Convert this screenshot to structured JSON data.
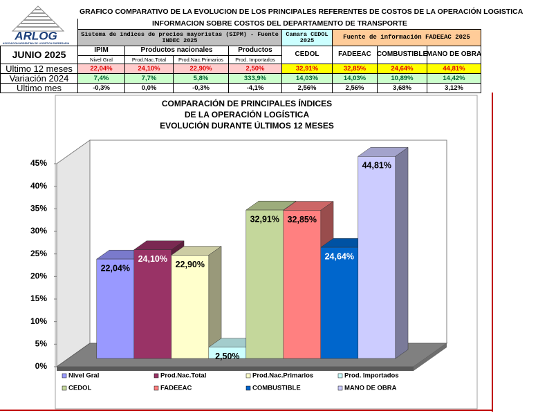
{
  "logo": {
    "name": "ARLOG",
    "tagline": "ASOCIACION ARGENTINA DE LOGISTICA EMPRESARIA"
  },
  "table": {
    "title": "GRAFICO COMPARATIVO DE LA EVOLUCION DE LOS PRINCIPALES REFERENTES DE COSTOS DE LA OPERACIÓN LOGISTICA",
    "subtitle": "INFORMACION SOBRE COSTOS  DEL DEPARTAMENTO DE TRANSPORTE",
    "period": "JUNIO 2025",
    "source_sipm": "Sistema de índices de precios mayoristas (SIPM) - Fuente INDEC 2025",
    "source_cedol": "Camara CEDOL 2025",
    "source_fadeeac": "Fuente de información FADEEAC 2025",
    "groups": [
      "IPIM",
      "Productos nacionales",
      "Productos"
    ],
    "columns": [
      "Nivel Gral",
      "Prod.Nac.Total",
      "Prod.Nac.Primarios",
      "Prod. Importados",
      "CEDOL",
      "FADEEAC",
      "COMBUSTIBLE",
      "MANO DE OBRA"
    ],
    "rows": [
      {
        "label": "Ultimo 12 meses",
        "cells": [
          "22,04%",
          "24,10%",
          "22,90%",
          "2,50%",
          "32,91%",
          "32,85%",
          "24,64%",
          "44,81%"
        ]
      },
      {
        "label": "Variación 2024",
        "cells": [
          "7,4%",
          "7,7%",
          "5,8%",
          "333,9%",
          "14,03%",
          "14,03%",
          "10,89%",
          "14,42%"
        ]
      },
      {
        "label": "Ultimo mes",
        "cells": [
          "-0,3%",
          "0,0%",
          "-0,3%",
          "-4,1%",
          "2,56%",
          "2,56%",
          "3,68%",
          "3,12%"
        ]
      }
    ]
  },
  "chart_data": {
    "type": "bar",
    "three_d": true,
    "title": [
      "COMPARACIÓN DE PRINCIPALES ÍNDICES",
      "DE LA OPERACIÓN LOGÍSTICA",
      "EVOLUCIÓN DURANTE ÚLTIMOS 12 MESES"
    ],
    "ylim": [
      0,
      45
    ],
    "yticks": [
      {
        "value": 0,
        "label": "0%"
      },
      {
        "value": 5,
        "label": "5%"
      },
      {
        "value": 10,
        "label": "10%"
      },
      {
        "value": 15,
        "label": "15%"
      },
      {
        "value": 20,
        "label": "20%"
      },
      {
        "value": 25,
        "label": "25%"
      },
      {
        "value": 30,
        "label": "30%"
      },
      {
        "value": 35,
        "label": "35%"
      },
      {
        "value": 40,
        "label": "40%"
      },
      {
        "value": 45,
        "label": "45%"
      }
    ],
    "legend": "bottom",
    "series": [
      {
        "name": "Nivel Gral",
        "color": "#9999ff",
        "values": [
          22.04
        ],
        "value_labels": [
          "22,04%"
        ]
      },
      {
        "name": "Prod.Nac.Total",
        "color": "#993366",
        "values": [
          24.1
        ],
        "value_labels": [
          "24,10%"
        ]
      },
      {
        "name": "Prod.Nac.Primarios",
        "color": "#ffffcc",
        "values": [
          22.9
        ],
        "value_labels": [
          "22,90%"
        ]
      },
      {
        "name": "Prod. Importados",
        "color": "#ccffff",
        "values": [
          2.5
        ],
        "value_labels": [
          "2,50%"
        ]
      },
      {
        "name": "CEDOL",
        "color": "#c4d79b",
        "values": [
          32.91
        ],
        "value_labels": [
          "32,91%"
        ]
      },
      {
        "name": "FADEEAC",
        "color": "#ff8080",
        "values": [
          32.85
        ],
        "value_labels": [
          "32,85%"
        ]
      },
      {
        "name": "COMBUSTIBLE",
        "color": "#0066cc",
        "values": [
          24.64
        ],
        "value_labels": [
          "24,64%"
        ]
      },
      {
        "name": "MANO DE OBRA",
        "color": "#ccccff",
        "values": [
          44.81
        ],
        "value_labels": [
          "44,81%"
        ]
      }
    ]
  }
}
